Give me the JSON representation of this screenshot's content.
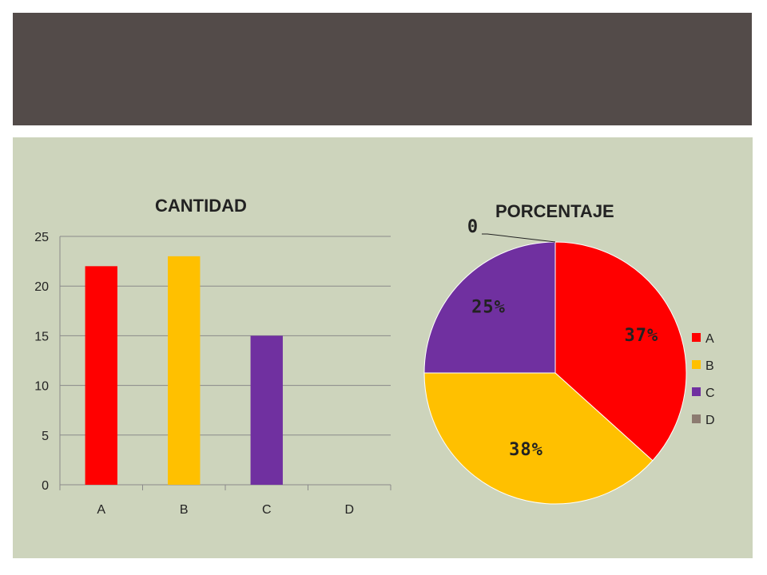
{
  "colors": {
    "A": "#ff0000",
    "B": "#ffc000",
    "C": "#7030a0",
    "D": "#8c7b70"
  },
  "chart_data": [
    {
      "type": "bar",
      "title": "CANTIDAD",
      "categories": [
        "A",
        "B",
        "C",
        "D"
      ],
      "values": [
        22,
        23,
        15,
        0
      ],
      "ylim": [
        0,
        25
      ],
      "yticks": [
        "0",
        "5",
        "10",
        "15",
        "20",
        "25"
      ],
      "grid": true
    },
    {
      "type": "pie",
      "title": "PORCENTAJE",
      "categories": [
        "A",
        "B",
        "C",
        "D"
      ],
      "values": [
        22,
        23,
        15,
        0
      ],
      "labels": [
        "37%",
        "38%",
        "25%",
        "0"
      ],
      "legend": "right"
    }
  ]
}
